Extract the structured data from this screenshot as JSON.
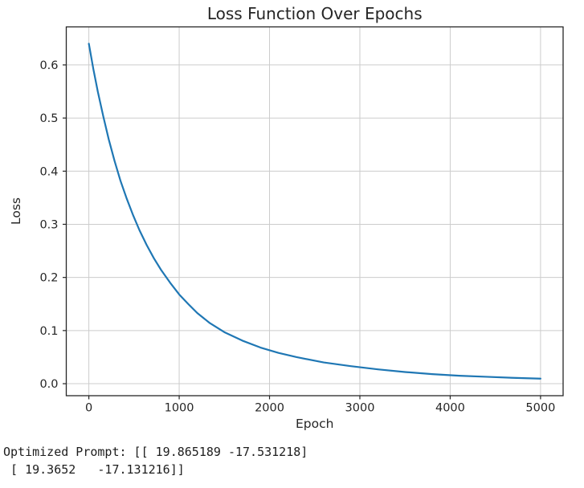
{
  "chart_data": {
    "type": "line",
    "title": "Loss Function Over Epochs",
    "xlabel": "Epoch",
    "ylabel": "Loss",
    "x_ticks": [
      0,
      1000,
      2000,
      3000,
      4000,
      5000
    ],
    "y_ticks": [
      0.0,
      0.1,
      0.2,
      0.3,
      0.4,
      0.5,
      0.6
    ],
    "y_tick_labels": [
      "0.0",
      "0.1",
      "0.2",
      "0.3",
      "0.4",
      "0.5",
      "0.6"
    ],
    "xlim": [
      -250,
      5250
    ],
    "ylim": [
      -0.0226,
      0.6716
    ],
    "grid": true,
    "legend": null,
    "colors": {
      "line": "#1f77b4",
      "grid": "#cccccc",
      "spine": "#262626",
      "text": "#191919",
      "background": "#ffffff"
    },
    "series": [
      {
        "name": "loss",
        "points": [
          [
            0,
            0.64
          ],
          [
            50,
            0.592
          ],
          [
            100,
            0.549
          ],
          [
            160,
            0.503
          ],
          [
            220,
            0.46
          ],
          [
            285,
            0.419
          ],
          [
            350,
            0.382
          ],
          [
            420,
            0.348
          ],
          [
            490,
            0.317
          ],
          [
            560,
            0.289
          ],
          [
            640,
            0.261
          ],
          [
            720,
            0.236
          ],
          [
            800,
            0.214
          ],
          [
            900,
            0.19
          ],
          [
            1000,
            0.168
          ],
          [
            1100,
            0.15
          ],
          [
            1200,
            0.133
          ],
          [
            1340,
            0.114
          ],
          [
            1500,
            0.097
          ],
          [
            1700,
            0.081
          ],
          [
            1900,
            0.068
          ],
          [
            2100,
            0.058
          ],
          [
            2300,
            0.05
          ],
          [
            2600,
            0.04
          ],
          [
            2900,
            0.033
          ],
          [
            3200,
            0.027
          ],
          [
            3500,
            0.022
          ],
          [
            3800,
            0.018
          ],
          [
            4100,
            0.015
          ],
          [
            4400,
            0.013
          ],
          [
            4700,
            0.011
          ],
          [
            5000,
            0.0095
          ]
        ]
      }
    ]
  },
  "console": {
    "line1": "Optimized Prompt: [[ 19.865189 -17.531218]",
    "line2": " [ 19.3652   -17.131216]]"
  }
}
